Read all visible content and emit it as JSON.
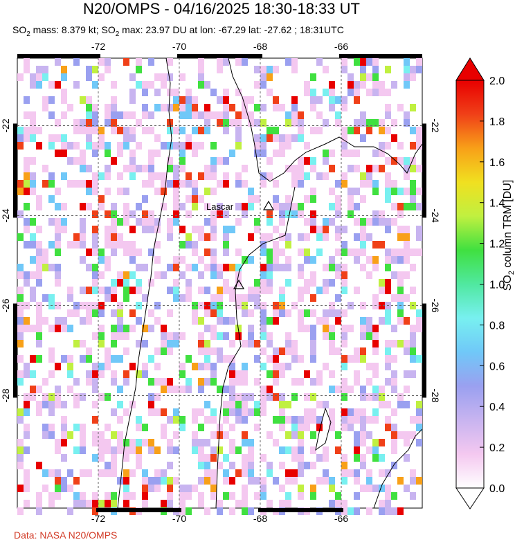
{
  "header": {
    "title": "N20/OMPS - 04/16/2025 18:30-18:33 UT",
    "subtitle_prefix_1": "SO",
    "subtitle_sub_1": "2",
    "subtitle_mass": " mass: 8.379 kt; SO",
    "subtitle_sub_2": "2",
    "subtitle_rest": " max: 23.97 DU at lon: -67.29 lat: -27.62 ; 18:31UTC"
  },
  "map": {
    "lon_ticks": [
      "-72",
      "-70",
      "-68",
      "-66"
    ],
    "lat_ticks": [
      "-22",
      "-24",
      "-26",
      "-28"
    ],
    "lon_range": [
      -74,
      -64
    ],
    "lat_range": [
      -20.5,
      -30.5
    ],
    "volcano_label": "Lascar",
    "volcano_marker": "triangle-icon"
  },
  "colorbar": {
    "title_prefix": "SO",
    "title_sub": "2",
    "title_rest": " column TRM [DU]",
    "ticks": [
      "0.0",
      "0.2",
      "0.4",
      "0.6",
      "0.8",
      "1.0",
      "1.2",
      "1.4",
      "1.6",
      "1.8",
      "2.0"
    ],
    "range": [
      0.0,
      2.0
    ],
    "colors": [
      "#ffffff",
      "#f4c8f0",
      "#c8b4f0",
      "#9aa0f0",
      "#70c8f8",
      "#78f0f0",
      "#50e8a0",
      "#40e040",
      "#c0f040",
      "#f0e020",
      "#f8a018",
      "#f04018",
      "#e80000"
    ]
  },
  "footer": {
    "credit": "Data: NASA N20/OMPS"
  }
}
